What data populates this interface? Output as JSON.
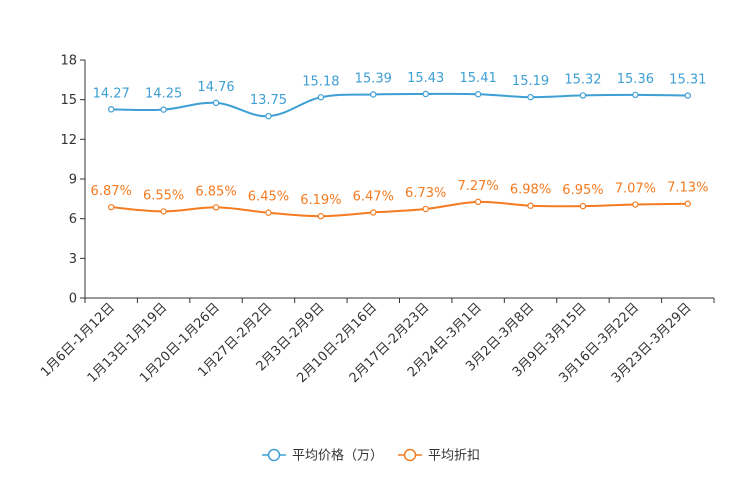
{
  "chart_data": {
    "type": "line",
    "title": "",
    "xlabel": "",
    "ylabel": "",
    "ylim": [
      0,
      18
    ],
    "yticks": [
      0,
      3,
      6,
      9,
      12,
      15,
      18
    ],
    "grid": false,
    "legend_position": "bottom-center",
    "categories": [
      "1月6日-1月12日",
      "1月13日-1月19日",
      "1月20日-1月26日",
      "1月27日-2月2日",
      "2月3日-2月9日",
      "2月10日-2月16日",
      "2月17日-2月23日",
      "2月24日-3月1日",
      "3月2日-3月8日",
      "3月9日-3月15日",
      "3月16日-3月22日",
      "3月23日-3月29日"
    ],
    "series": [
      {
        "name": "平均价格（万）",
        "color": "#3e9fd4",
        "values": [
          14.27,
          14.25,
          14.76,
          13.75,
          15.18,
          15.39,
          15.43,
          15.41,
          15.19,
          15.32,
          15.36,
          15.31
        ],
        "labels": [
          "14.27",
          "14.25",
          "14.76",
          "13.75",
          "15.18",
          "15.39",
          "15.43",
          "15.41",
          "15.19",
          "15.32",
          "15.36",
          "15.31"
        ]
      },
      {
        "name": "平均折扣",
        "color": "#f47b20",
        "values": [
          6.87,
          6.55,
          6.85,
          6.45,
          6.19,
          6.47,
          6.73,
          7.27,
          6.98,
          6.95,
          7.07,
          7.13
        ],
        "labels": [
          "6.87%",
          "6.55%",
          "6.85%",
          "6.45%",
          "6.19%",
          "6.47%",
          "6.73%",
          "7.27%",
          "6.98%",
          "6.95%",
          "7.07%",
          "7.13%"
        ]
      }
    ]
  }
}
